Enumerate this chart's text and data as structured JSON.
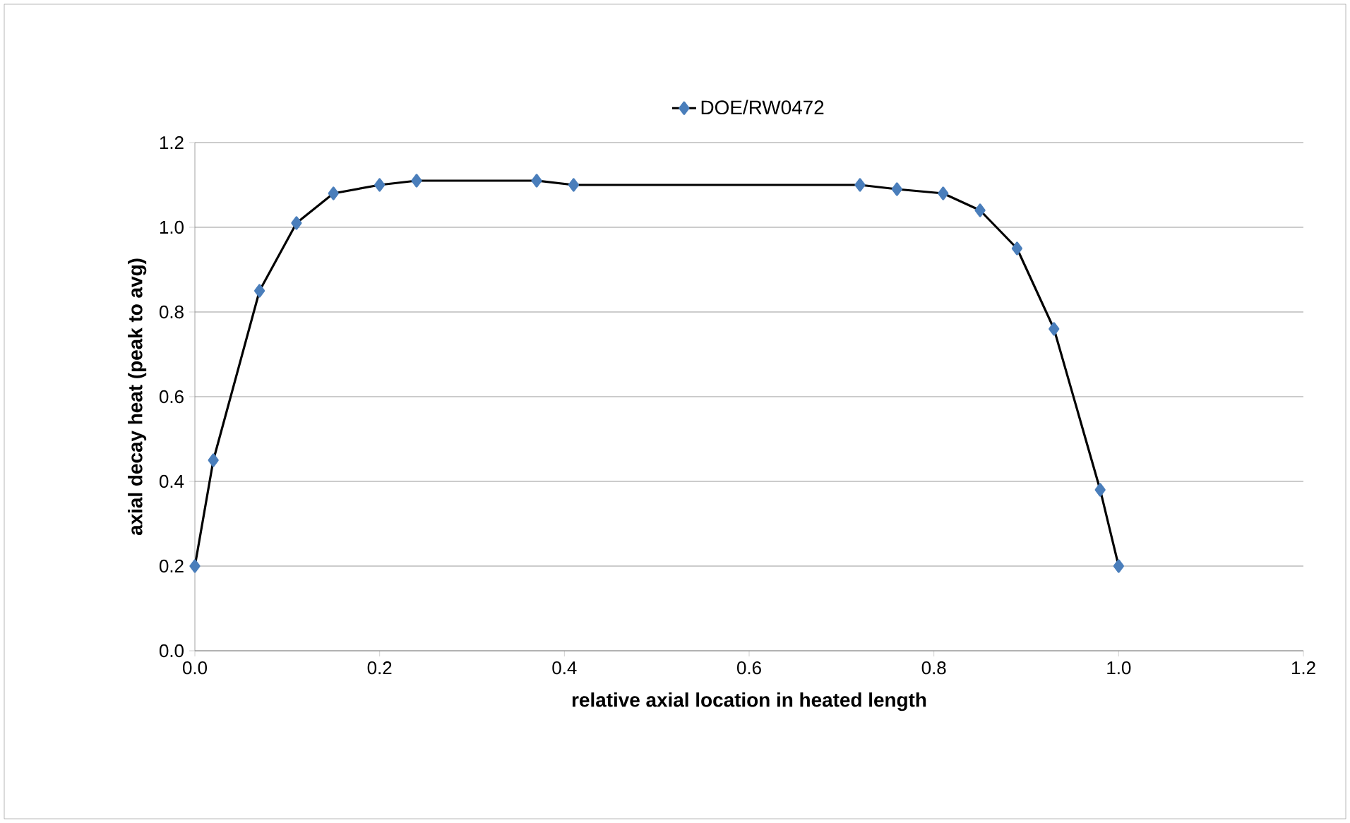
{
  "chart_data": {
    "type": "line",
    "xlabel": "relative axial location in heated length",
    "ylabel": "axial decay heat (peak to avg)",
    "series": [
      {
        "name": "DOE/RW0472",
        "color": "#4a7ebb",
        "x": [
          0,
          0.02,
          0.07,
          0.11,
          0.15,
          0.2,
          0.24,
          0.37,
          0.41,
          0.72,
          0.76,
          0.81,
          0.85,
          0.89,
          0.93,
          0.98,
          1.0
        ],
        "values": [
          0.2,
          0.45,
          0.85,
          1.01,
          1.08,
          1.1,
          1.11,
          1.11,
          1.1,
          1.1,
          1.09,
          1.08,
          1.04,
          0.95,
          0.76,
          0.38,
          0.2
        ]
      }
    ],
    "xlim": [
      0,
      1.2
    ],
    "ylim": [
      0,
      1.2
    ],
    "xticks": [
      {
        "value": 0,
        "label": "0.0"
      },
      {
        "value": 0.2,
        "label": "0.2"
      },
      {
        "value": 0.4,
        "label": "0.4"
      },
      {
        "value": 0.6,
        "label": "0.6"
      },
      {
        "value": 0.8,
        "label": "0.8"
      },
      {
        "value": 1.0,
        "label": "1.0"
      },
      {
        "value": 1.2,
        "label": "1.2"
      }
    ],
    "yticks": [
      {
        "value": 0,
        "label": "0.0"
      },
      {
        "value": 0.2,
        "label": "0.2"
      },
      {
        "value": 0.4,
        "label": "0.4"
      },
      {
        "value": 0.6,
        "label": "0.6"
      },
      {
        "value": 0.8,
        "label": "0.8"
      },
      {
        "value": 1.0,
        "label": "1.0"
      },
      {
        "value": 1.2,
        "label": "1.2"
      }
    ],
    "grid": "y",
    "legend": "top",
    "marker": "diamond",
    "line_style": "solid"
  }
}
